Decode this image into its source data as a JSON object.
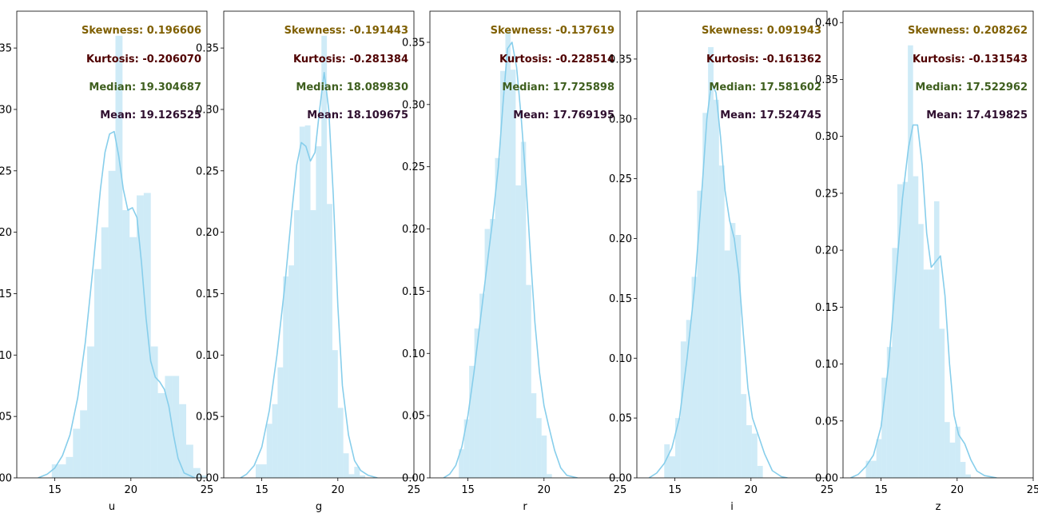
{
  "chart_data": [
    {
      "type": "histogram",
      "xlabel": "u",
      "xlim": [
        12.5,
        25
      ],
      "ylim": [
        0,
        0.38
      ],
      "xticks": [
        15,
        20,
        25
      ],
      "yticks": [
        0.0,
        0.05,
        0.1,
        0.15,
        0.2,
        0.25,
        0.3,
        0.35
      ],
      "ytick_labels": [
        ".00",
        ".05",
        ".10",
        ".15",
        ".20",
        ".25",
        ".30",
        ".35"
      ],
      "bins": {
        "start": 14.8,
        "width": 0.465,
        "heights": [
          0.011,
          0.011,
          0.017,
          0.04,
          0.055,
          0.107,
          0.17,
          0.204,
          0.25,
          0.36,
          0.218,
          0.196,
          0.23,
          0.232,
          0.107,
          0.069,
          0.083,
          0.083,
          0.06,
          0.027,
          0.008,
          0.002
        ]
      },
      "kde": {
        "x": [
          13.9,
          14.5,
          15,
          15.5,
          16,
          16.5,
          17,
          17.5,
          18,
          18.3,
          18.6,
          18.9,
          19.2,
          19.5,
          19.8,
          20.1,
          20.4,
          20.7,
          21,
          21.3,
          21.6,
          21.9,
          22.2,
          22.5,
          22.8,
          23.1,
          23.5,
          24.2
        ],
        "y": [
          0,
          0.003,
          0.008,
          0.018,
          0.035,
          0.065,
          0.11,
          0.17,
          0.235,
          0.265,
          0.28,
          0.282,
          0.262,
          0.235,
          0.218,
          0.22,
          0.212,
          0.175,
          0.13,
          0.095,
          0.082,
          0.078,
          0.072,
          0.058,
          0.035,
          0.016,
          0.004,
          0
        ]
      },
      "stats": {
        "skewness": "Skewness: 0.196606",
        "kurtosis": "Kurtosis: -0.206070",
        "median": "Median: 19.304687",
        "mean": "Mean: 19.126525"
      }
    },
    {
      "type": "histogram",
      "xlabel": "g",
      "xlim": [
        12.5,
        25
      ],
      "ylim": [
        0,
        0.38
      ],
      "xticks": [
        15,
        20,
        25
      ],
      "yticks": [
        0.0,
        0.05,
        0.1,
        0.15,
        0.2,
        0.25,
        0.3,
        0.35
      ],
      "ytick_labels": [
        "0.00",
        "0.05",
        "0.10",
        "0.15",
        "0.20",
        "0.25",
        "0.30",
        "0.35"
      ],
      "bins": {
        "start": 14.6,
        "width": 0.36,
        "heights": [
          0.011,
          0.011,
          0.044,
          0.06,
          0.09,
          0.164,
          0.173,
          0.218,
          0.286,
          0.287,
          0.218,
          0.27,
          0.36,
          0.223,
          0.104,
          0.057,
          0.02,
          0.003,
          0.009,
          0.002
        ]
      },
      "kde": {
        "x": [
          13.6,
          14,
          14.5,
          15,
          15.5,
          16,
          16.5,
          17,
          17.3,
          17.6,
          17.9,
          18.2,
          18.5,
          18.8,
          19.1,
          19.4,
          19.7,
          20,
          20.3,
          20.7,
          21.1,
          21.5,
          22,
          22.6
        ],
        "y": [
          0,
          0.003,
          0.01,
          0.025,
          0.055,
          0.1,
          0.155,
          0.22,
          0.255,
          0.273,
          0.27,
          0.258,
          0.265,
          0.3,
          0.33,
          0.3,
          0.23,
          0.14,
          0.075,
          0.035,
          0.014,
          0.006,
          0.002,
          0
        ]
      },
      "stats": {
        "skewness": "Skewness: -0.191443",
        "kurtosis": "Kurtosis: -0.281384",
        "median": "Median: 18.089830",
        "mean": "Mean: 18.109675"
      }
    },
    {
      "type": "histogram",
      "xlabel": "r",
      "xlim": [
        12.5,
        25
      ],
      "ylim": [
        0,
        0.375
      ],
      "xticks": [
        15,
        20,
        25
      ],
      "yticks": [
        0.0,
        0.05,
        0.1,
        0.15,
        0.2,
        0.25,
        0.3,
        0.35
      ],
      "ytick_labels": [
        "0.00",
        "0.05",
        "0.10",
        "0.15",
        "0.20",
        "0.25",
        "0.30",
        "0.35"
      ],
      "bins": {
        "start": 14.4,
        "width": 0.34,
        "heights": [
          0.023,
          0.047,
          0.09,
          0.12,
          0.148,
          0.2,
          0.208,
          0.257,
          0.327,
          0.36,
          0.328,
          0.235,
          0.27,
          0.155,
          0.068,
          0.048,
          0.034,
          0.003
        ]
      },
      "kde": {
        "x": [
          13.4,
          13.8,
          14.2,
          14.6,
          15,
          15.4,
          15.8,
          16.2,
          16.6,
          17,
          17.3,
          17.6,
          17.9,
          18.2,
          18.5,
          18.8,
          19.1,
          19.4,
          19.7,
          20,
          20.3,
          20.7,
          21.1,
          21.5,
          22.2
        ],
        "y": [
          0,
          0.003,
          0.01,
          0.025,
          0.05,
          0.085,
          0.125,
          0.165,
          0.205,
          0.25,
          0.3,
          0.345,
          0.35,
          0.33,
          0.29,
          0.24,
          0.18,
          0.125,
          0.085,
          0.058,
          0.042,
          0.022,
          0.008,
          0.002,
          0
        ]
      },
      "stats": {
        "skewness": "Skewness: -0.137619",
        "kurtosis": "Kurtosis: -0.228514",
        "median": "Median: 17.725898",
        "mean": "Mean: 17.769195"
      }
    },
    {
      "type": "histogram",
      "xlabel": "i",
      "xlim": [
        12.5,
        25
      ],
      "ylim": [
        0,
        0.39
      ],
      "xticks": [
        15,
        20,
        25
      ],
      "yticks": [
        0.0,
        0.05,
        0.1,
        0.15,
        0.2,
        0.25,
        0.3,
        0.35
      ],
      "ytick_labels": [
        "0.00",
        "0.05",
        "0.10",
        "0.15",
        "0.20",
        "0.25",
        "0.30",
        "0.35"
      ],
      "bins": {
        "start": 14.3,
        "width": 0.36,
        "heights": [
          0.028,
          0.018,
          0.05,
          0.114,
          0.132,
          0.168,
          0.24,
          0.305,
          0.36,
          0.316,
          0.261,
          0.19,
          0.213,
          0.203,
          0.07,
          0.044,
          0.037,
          0.01
        ]
      },
      "kde": {
        "x": [
          13.3,
          13.8,
          14.3,
          14.8,
          15.3,
          15.8,
          16.3,
          16.8,
          17.1,
          17.4,
          17.7,
          18,
          18.3,
          18.6,
          18.9,
          19.2,
          19.5,
          19.8,
          20.1,
          20.5,
          20.9,
          21.4,
          22,
          22.4
        ],
        "y": [
          0,
          0.004,
          0.012,
          0.025,
          0.05,
          0.1,
          0.16,
          0.245,
          0.3,
          0.33,
          0.322,
          0.285,
          0.24,
          0.215,
          0.2,
          0.17,
          0.12,
          0.075,
          0.05,
          0.035,
          0.02,
          0.006,
          0.001,
          0
        ]
      },
      "stats": {
        "skewness": "Skewness: 0.091943",
        "kurtosis": "Kurtosis: -0.161362",
        "median": "Median: 17.581602",
        "mean": "Mean: 17.524745"
      }
    },
    {
      "type": "histogram",
      "xlabel": "z",
      "xlim": [
        12.5,
        25
      ],
      "ylim": [
        0,
        0.41
      ],
      "xticks": [
        15,
        20,
        25
      ],
      "yticks": [
        0.0,
        0.05,
        0.1,
        0.15,
        0.2,
        0.25,
        0.3,
        0.35,
        0.4
      ],
      "ytick_labels": [
        "0.00",
        "0.05",
        "0.10",
        "0.15",
        "0.20",
        "0.25",
        "0.30",
        "0.35",
        "0.40"
      ],
      "bins": {
        "start": 14.0,
        "width": 0.345,
        "heights": [
          0.015,
          0.015,
          0.034,
          0.088,
          0.115,
          0.202,
          0.258,
          0.26,
          0.38,
          0.265,
          0.223,
          0.183,
          0.183,
          0.243,
          0.131,
          0.049,
          0.031,
          0.045,
          0.014,
          0.003
        ]
      },
      "kde": {
        "x": [
          13,
          13.5,
          14,
          14.5,
          15,
          15.5,
          16,
          16.4,
          16.8,
          17.1,
          17.4,
          17.7,
          18,
          18.3,
          18.6,
          18.9,
          19.2,
          19.5,
          19.8,
          20.1,
          20.5,
          20.9,
          21.3,
          21.8,
          22.6
        ],
        "y": [
          0,
          0.003,
          0.01,
          0.02,
          0.045,
          0.1,
          0.18,
          0.245,
          0.29,
          0.31,
          0.31,
          0.275,
          0.215,
          0.185,
          0.19,
          0.195,
          0.16,
          0.1,
          0.055,
          0.038,
          0.03,
          0.016,
          0.006,
          0.002,
          0
        ]
      },
      "stats": {
        "skewness": "Skewness: 0.208262",
        "kurtosis": "Kurtosis: -0.131543",
        "median": "Median: 17.522962",
        "mean": "Mean: 17.419825"
      }
    }
  ],
  "colors": {
    "bar": "#87ceeb",
    "kde_line": "#87ceeb",
    "skewness_text": "#7f5f00",
    "kurtosis_text": "#4f0000",
    "median_text": "#3f5f1f",
    "mean_text": "#2f0f2f"
  }
}
